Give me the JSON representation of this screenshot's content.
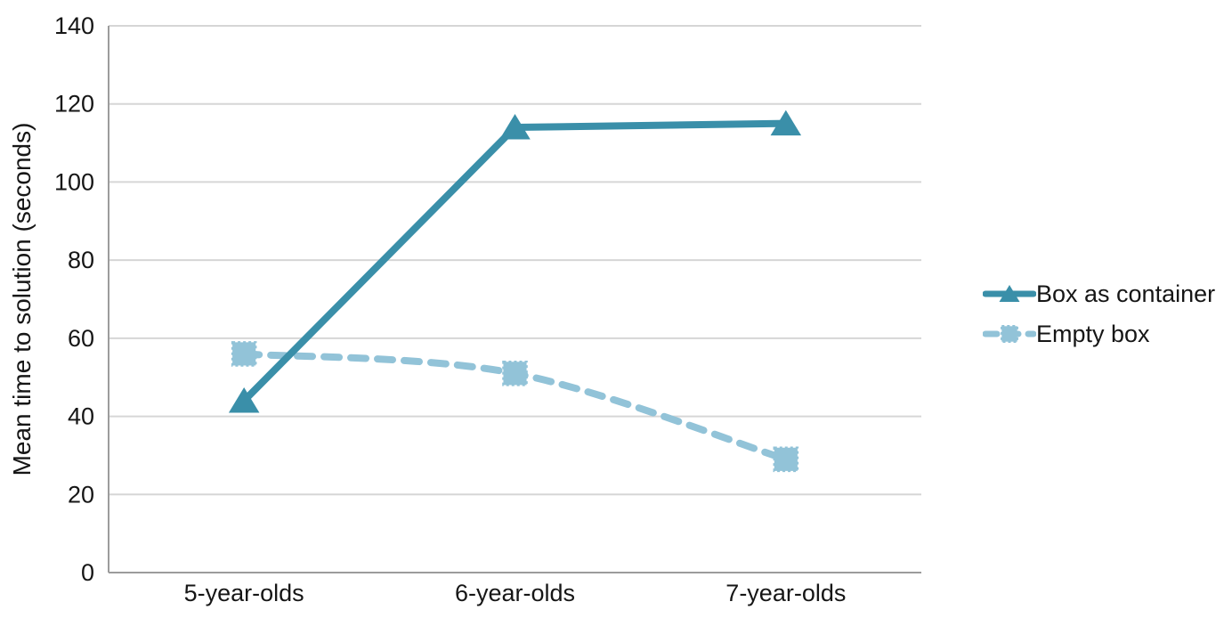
{
  "chart_data": {
    "type": "line",
    "title": "",
    "xlabel": "",
    "ylabel": "Mean time to solution (seconds)",
    "categories": [
      "5-year-olds",
      "6-year-olds",
      "7-year-olds"
    ],
    "series": [
      {
        "name": "Box as container",
        "values": [
          44,
          114,
          115
        ],
        "color": "#3a8fa9",
        "line_style": "solid",
        "marker": "triangle",
        "curved": false
      },
      {
        "name": "Empty box",
        "values": [
          56,
          51,
          29
        ],
        "color": "#92c3d8",
        "line_style": "dashed",
        "marker": "square",
        "curved": true
      }
    ],
    "ylim": [
      0,
      140
    ],
    "ytick_interval": 20,
    "ytick_labels": [
      "0",
      "20",
      "40",
      "60",
      "80",
      "100",
      "120",
      "140"
    ],
    "grid": "horizontal",
    "legend_position": "right"
  },
  "colors": {
    "series_box_as_container": "#3a8fa9",
    "series_empty_box": "#92c3d8",
    "gridline": "#d6d6d6",
    "axis_line": "#9c9c9c",
    "text": "#161616",
    "background": "#ffffff"
  }
}
